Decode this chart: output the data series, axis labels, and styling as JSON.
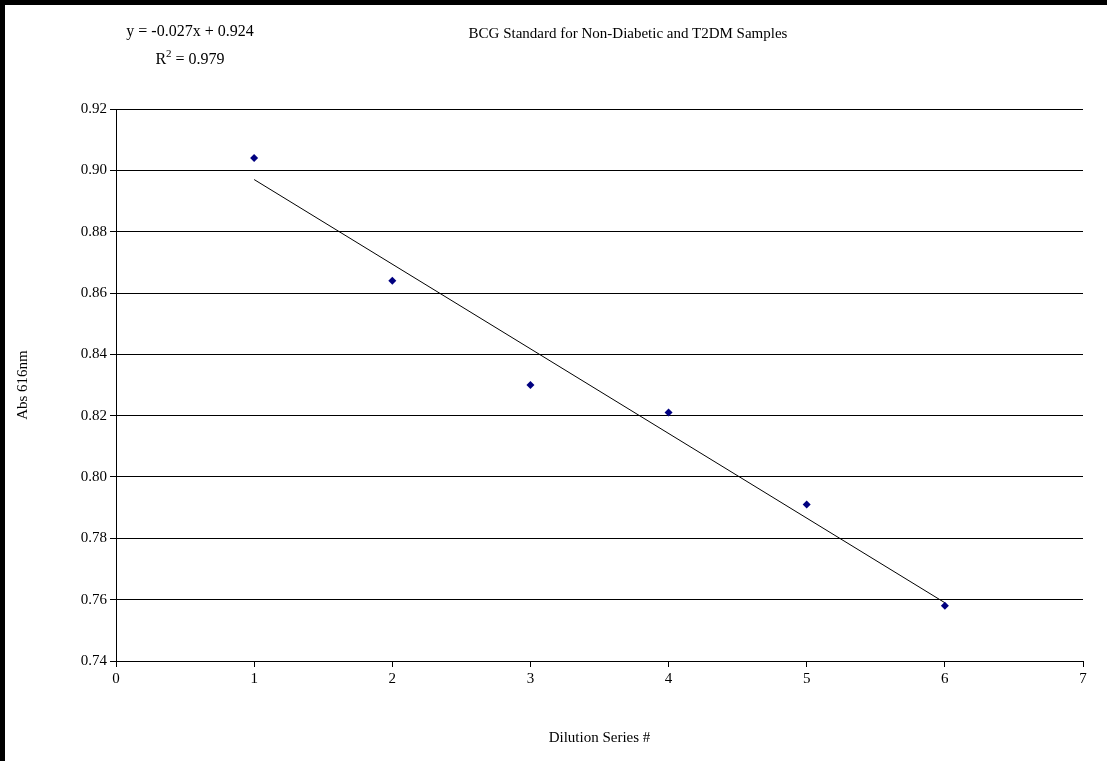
{
  "chart_data": {
    "type": "scatter",
    "title": "BCG Standard for Non-Diabetic and T2DM Samples",
    "xlabel": "Dilution Series #",
    "ylabel": "Abs 616nm",
    "annotations": [
      "y = -0.027x + 0.924",
      "R$^{2}$ = 0.979"
    ],
    "series": [
      {
        "color": "#000080",
        "marker": "diamond",
        "x": [
          1,
          2,
          3,
          4,
          5,
          6
        ],
        "values": [
          0.904,
          0.864,
          0.83,
          0.821,
          0.791,
          0.758
        ]
      },
      {
        "type": "line",
        "color": "#000000",
        "marker": "none",
        "x": [
          1,
          6
        ],
        "values": [
          0.897,
          0.759
        ]
      }
    ],
    "xlim": [
      0,
      7
    ],
    "xticks": [
      0,
      1,
      2,
      3,
      4,
      5,
      6,
      7
    ],
    "ylim": [
      0.74,
      0.92
    ],
    "yticks": [
      {
        "value": 0.74,
        "label": "0.74"
      },
      {
        "value": 0.76,
        "label": "0.76"
      },
      {
        "value": 0.78,
        "label": "0.78"
      },
      {
        "value": 0.8,
        "label": "0.80"
      },
      {
        "value": 0.82,
        "label": "0.82"
      },
      {
        "value": 0.84,
        "label": "0.84"
      },
      {
        "value": 0.86,
        "label": "0.86"
      },
      {
        "value": 0.88,
        "label": "0.88"
      },
      {
        "value": 0.9,
        "label": "0.90"
      },
      {
        "value": 0.92,
        "label": "0.92"
      }
    ],
    "grid": "y",
    "legend": false
  }
}
